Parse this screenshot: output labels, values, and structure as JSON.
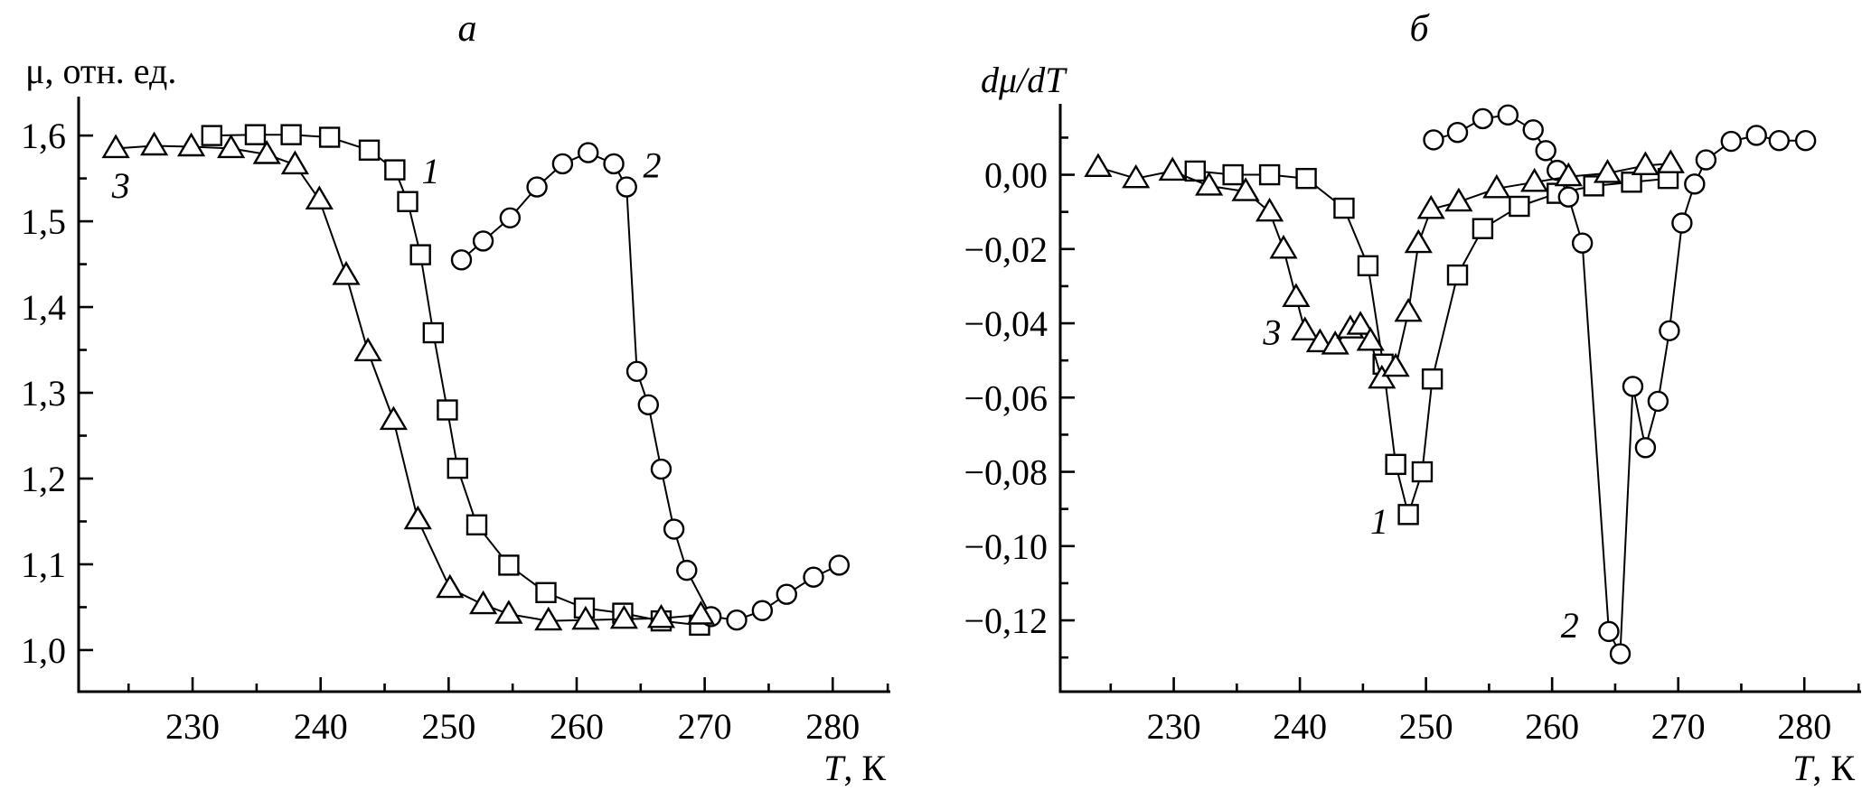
{
  "figure": {
    "background": "#ffffff",
    "ink": "#000000",
    "panel_a_title": "а",
    "panel_b_title": "б"
  },
  "chart_data": [
    {
      "panel": "a",
      "type": "line",
      "title": "а",
      "ylabel": "μ, отн. ед.",
      "xlabel": "T, К",
      "xlim": [
        221.1,
        284.5
      ],
      "ylim": [
        0.9515,
        1.6454
      ],
      "grid": false,
      "legend": "none (curves labeled inline 1, 2, 3)",
      "x_ticks_major": [
        230,
        240,
        250,
        260,
        270,
        280
      ],
      "x_tick_labels": [
        "230",
        "240",
        "250",
        "260",
        "270",
        "280"
      ],
      "x_ticks_minor": [
        225,
        235,
        245,
        255,
        265,
        275,
        284.3
      ],
      "y_ticks_major": [
        1.0,
        1.1,
        1.2,
        1.3,
        1.4,
        1.5,
        1.6
      ],
      "y_tick_labels": [
        "1,0",
        "1,1",
        "1,2",
        "1,3",
        "1,4",
        "1,5",
        "1,6"
      ],
      "y_ticks_minor": [
        1.05,
        1.15,
        1.25,
        1.35,
        1.45,
        1.55
      ],
      "series": [
        {
          "name": "1",
          "marker": "square",
          "label": {
            "text": "1",
            "x": 248.6,
            "y": 1.558
          },
          "points": [
            [
              231.5,
              1.6
            ],
            [
              234.9,
              1.601
            ],
            [
              237.7,
              1.601
            ],
            [
              240.7,
              1.598
            ],
            [
              243.8,
              1.583
            ],
            [
              245.8,
              1.56
            ],
            [
              246.8,
              1.523
            ],
            [
              247.8,
              1.461
            ],
            [
              248.8,
              1.37
            ],
            [
              249.9,
              1.28
            ],
            [
              250.7,
              1.212
            ],
            [
              252.2,
              1.146
            ],
            [
              254.7,
              1.099
            ],
            [
              257.6,
              1.067
            ],
            [
              260.6,
              1.049
            ],
            [
              263.6,
              1.043
            ],
            [
              266.6,
              1.034
            ],
            [
              269.6,
              1.029
            ]
          ]
        },
        {
          "name": "2",
          "marker": "circle",
          "label": {
            "text": "2",
            "x": 265.9,
            "y": 1.565
          },
          "points": [
            [
              251.0,
              1.455
            ],
            [
              252.7,
              1.477
            ],
            [
              254.8,
              1.504
            ],
            [
              256.9,
              1.54
            ],
            [
              258.9,
              1.567
            ],
            [
              260.9,
              1.58
            ],
            [
              262.9,
              1.567
            ],
            [
              263.9,
              1.54
            ],
            [
              264.7,
              1.325
            ],
            [
              265.6,
              1.286
            ],
            [
              266.6,
              1.211
            ],
            [
              267.6,
              1.141
            ],
            [
              268.6,
              1.093
            ],
            [
              270.5,
              1.039
            ],
            [
              272.5,
              1.035
            ],
            [
              274.5,
              1.046
            ],
            [
              276.4,
              1.065
            ],
            [
              278.5,
              1.085
            ],
            [
              280.5,
              1.099
            ]
          ]
        },
        {
          "name": "3",
          "marker": "triangle",
          "label": {
            "text": "3",
            "x": 224.4,
            "y": 1.541
          },
          "points": [
            [
              224.0,
              1.585
            ],
            [
              227.0,
              1.588
            ],
            [
              229.9,
              1.587
            ],
            [
              233.0,
              1.585
            ],
            [
              235.8,
              1.578
            ],
            [
              238.0,
              1.566
            ],
            [
              239.9,
              1.525
            ],
            [
              242.0,
              1.437
            ],
            [
              243.7,
              1.348
            ],
            [
              245.7,
              1.268
            ],
            [
              247.6,
              1.152
            ],
            [
              250.1,
              1.072
            ],
            [
              252.7,
              1.053
            ],
            [
              254.7,
              1.042
            ],
            [
              257.8,
              1.034
            ],
            [
              260.7,
              1.035
            ],
            [
              263.7,
              1.036
            ],
            [
              266.6,
              1.037
            ],
            [
              269.7,
              1.041
            ]
          ]
        }
      ]
    },
    {
      "panel": "b",
      "type": "line",
      "title": "б",
      "ylabel": "dμ/dT",
      "xlabel": "T, К",
      "xlim": [
        221.0,
        284.5
      ],
      "ylim": [
        -0.1392,
        0.0191
      ],
      "grid": false,
      "legend": "none (curves labeled inline 1, 2, 3)",
      "x_ticks_major": [
        230,
        240,
        250,
        260,
        270,
        280
      ],
      "x_tick_labels": [
        "230",
        "240",
        "250",
        "260",
        "270",
        "280"
      ],
      "x_ticks_minor": [
        225,
        235,
        245,
        255,
        265,
        275,
        284.3
      ],
      "y_ticks_major": [
        0.0,
        -0.02,
        -0.04,
        -0.06,
        -0.08,
        -0.1,
        -0.12
      ],
      "y_tick_labels": [
        "0,00",
        "−0,02",
        "−0,04",
        "−0,06",
        "−0,08",
        "−0,10",
        "−0,12"
      ],
      "y_ticks_minor": [
        0.01,
        -0.01,
        -0.03,
        -0.05,
        -0.07,
        -0.09,
        -0.11,
        -0.13
      ],
      "series": [
        {
          "name": "1",
          "marker": "square",
          "label": {
            "text": "1",
            "x": 246.3,
            "y": -0.0935
          },
          "points": [
            [
              231.7,
              0.001
            ],
            [
              234.7,
              0.0
            ],
            [
              237.6,
              0.0
            ],
            [
              240.5,
              -0.001
            ],
            [
              243.5,
              -0.009
            ],
            [
              245.4,
              -0.0245
            ],
            [
              246.6,
              -0.051
            ],
            [
              247.6,
              -0.078
            ],
            [
              248.6,
              -0.0915
            ],
            [
              249.7,
              -0.08
            ],
            [
              250.5,
              -0.055
            ],
            [
              252.5,
              -0.027
            ],
            [
              254.5,
              -0.0145
            ],
            [
              257.4,
              -0.0085
            ],
            [
              260.4,
              -0.005
            ],
            [
              263.3,
              -0.003
            ],
            [
              266.3,
              -0.002
            ],
            [
              269.2,
              -0.001
            ]
          ]
        },
        {
          "name": "2",
          "marker": "circle",
          "label": {
            "text": "2",
            "x": 261.4,
            "y": -0.1215
          },
          "points": [
            [
              250.6,
              0.0094
            ],
            [
              252.5,
              0.0114
            ],
            [
              254.5,
              0.0151
            ],
            [
              256.5,
              0.0161
            ],
            [
              258.5,
              0.0121
            ],
            [
              259.5,
              0.0065
            ],
            [
              260.4,
              0.0012
            ],
            [
              261.3,
              -0.006
            ],
            [
              262.4,
              -0.0184
            ],
            [
              264.5,
              -0.123
            ],
            [
              265.4,
              -0.129
            ],
            [
              266.4,
              -0.057
            ],
            [
              267.4,
              -0.0735
            ],
            [
              268.4,
              -0.061
            ],
            [
              269.3,
              -0.042
            ],
            [
              270.3,
              -0.013
            ],
            [
              271.3,
              -0.0025
            ],
            [
              272.2,
              0.004
            ],
            [
              274.2,
              0.009
            ],
            [
              276.2,
              0.0106
            ],
            [
              278.0,
              0.0092
            ],
            [
              280.1,
              0.0092
            ]
          ]
        },
        {
          "name": "3",
          "marker": "triangle",
          "label": {
            "text": "3",
            "x": 237.8,
            "y": -0.0425
          },
          "points": [
            [
              224.0,
              0.002
            ],
            [
              227.0,
              -0.001
            ],
            [
              229.9,
              0.001
            ],
            [
              232.8,
              -0.003
            ],
            [
              235.7,
              -0.0045
            ],
            [
              237.6,
              -0.01
            ],
            [
              238.7,
              -0.02
            ],
            [
              239.7,
              -0.033
            ],
            [
              240.4,
              -0.042
            ],
            [
              241.6,
              -0.0452
            ],
            [
              242.8,
              -0.0458
            ],
            [
              244.0,
              -0.0415
            ],
            [
              244.8,
              -0.0405
            ],
            [
              245.6,
              -0.0448
            ],
            [
              246.5,
              -0.055
            ],
            [
              247.6,
              -0.0518
            ],
            [
              248.6,
              -0.037
            ],
            [
              249.4,
              -0.0185
            ],
            [
              250.4,
              -0.0093
            ],
            [
              252.6,
              -0.0073
            ],
            [
              255.6,
              -0.0037
            ],
            [
              258.6,
              -0.002
            ],
            [
              261.3,
              -0.0005
            ],
            [
              264.4,
              0.0004
            ],
            [
              267.4,
              0.0025
            ],
            [
              269.4,
              0.003
            ]
          ]
        }
      ]
    }
  ]
}
